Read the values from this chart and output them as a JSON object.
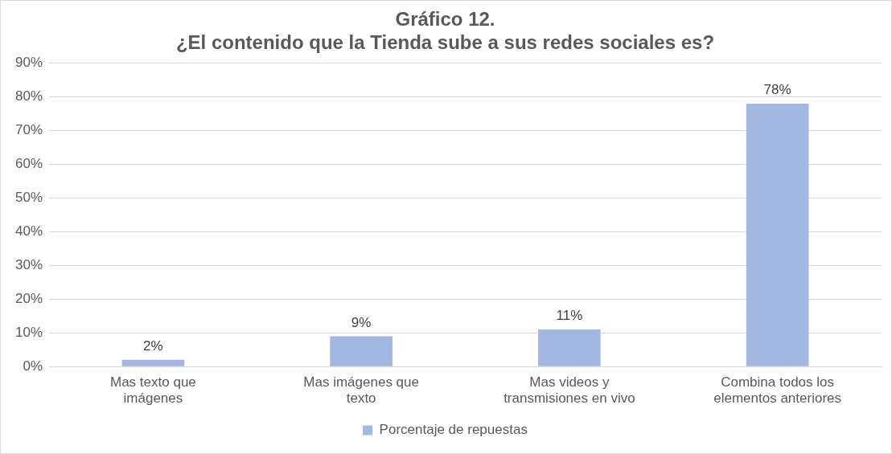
{
  "chart_data": {
    "type": "bar",
    "title": "Gráfico 12.\n¿El contenido que la Tienda sube a sus redes sociales es?",
    "categories": [
      "Mas texto que imágenes",
      "Mas imágenes que texto",
      "Mas videos y transmisiones en vivo",
      "Combina todos los elementos anteriores"
    ],
    "series": [
      {
        "name": "Porcentaje de repuestas",
        "color": "#a2b8e1",
        "values": [
          2,
          9,
          11,
          78
        ],
        "value_labels": [
          "2%",
          "9%",
          "11%",
          "78%"
        ]
      }
    ],
    "ylim": [
      0,
      90
    ],
    "yticks": [
      {
        "value": 0,
        "label": "0%"
      },
      {
        "value": 10,
        "label": "10%"
      },
      {
        "value": 20,
        "label": "20%"
      },
      {
        "value": 30,
        "label": "30%"
      },
      {
        "value": 40,
        "label": "40%"
      },
      {
        "value": 50,
        "label": "50%"
      },
      {
        "value": 60,
        "label": "60%"
      },
      {
        "value": 70,
        "label": "70%"
      },
      {
        "value": 80,
        "label": "80%"
      },
      {
        "value": 90,
        "label": "90%"
      }
    ],
    "grid": "y",
    "legend": "bottom"
  }
}
